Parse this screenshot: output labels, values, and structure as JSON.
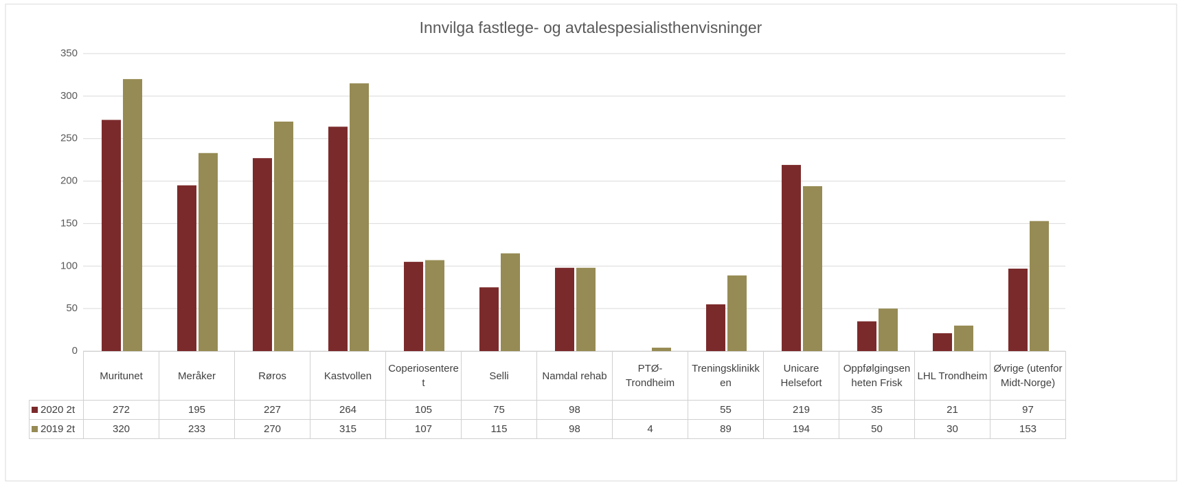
{
  "chart_data": {
    "type": "bar",
    "title": "Innvilga fastlege- og avtalespesialisthenvisninger",
    "categories": [
      "Muritunet",
      "Meråker",
      "Røros",
      "Kastvollen",
      "Coperiosenteret",
      "Selli",
      "Namdal rehab",
      "PTØ-Trondheim",
      "Treningsklinikken",
      "Unicare Helsefort",
      "Oppfølgingsenheten Frisk",
      "LHL Trondheim",
      "Øvrige (utenfor Midt-Norge)"
    ],
    "series": [
      {
        "name": "2020 2t",
        "color": "#7b2a2b",
        "values": [
          272,
          195,
          227,
          264,
          105,
          75,
          98,
          null,
          55,
          219,
          35,
          21,
          97
        ]
      },
      {
        "name": "2019 2t",
        "color": "#968b54",
        "values": [
          320,
          233,
          270,
          315,
          107,
          115,
          98,
          4,
          89,
          194,
          50,
          30,
          153
        ]
      }
    ],
    "ylim": [
      0,
      350
    ],
    "yticks": [
      0,
      50,
      100,
      150,
      200,
      250,
      300,
      350
    ],
    "grid": true
  }
}
